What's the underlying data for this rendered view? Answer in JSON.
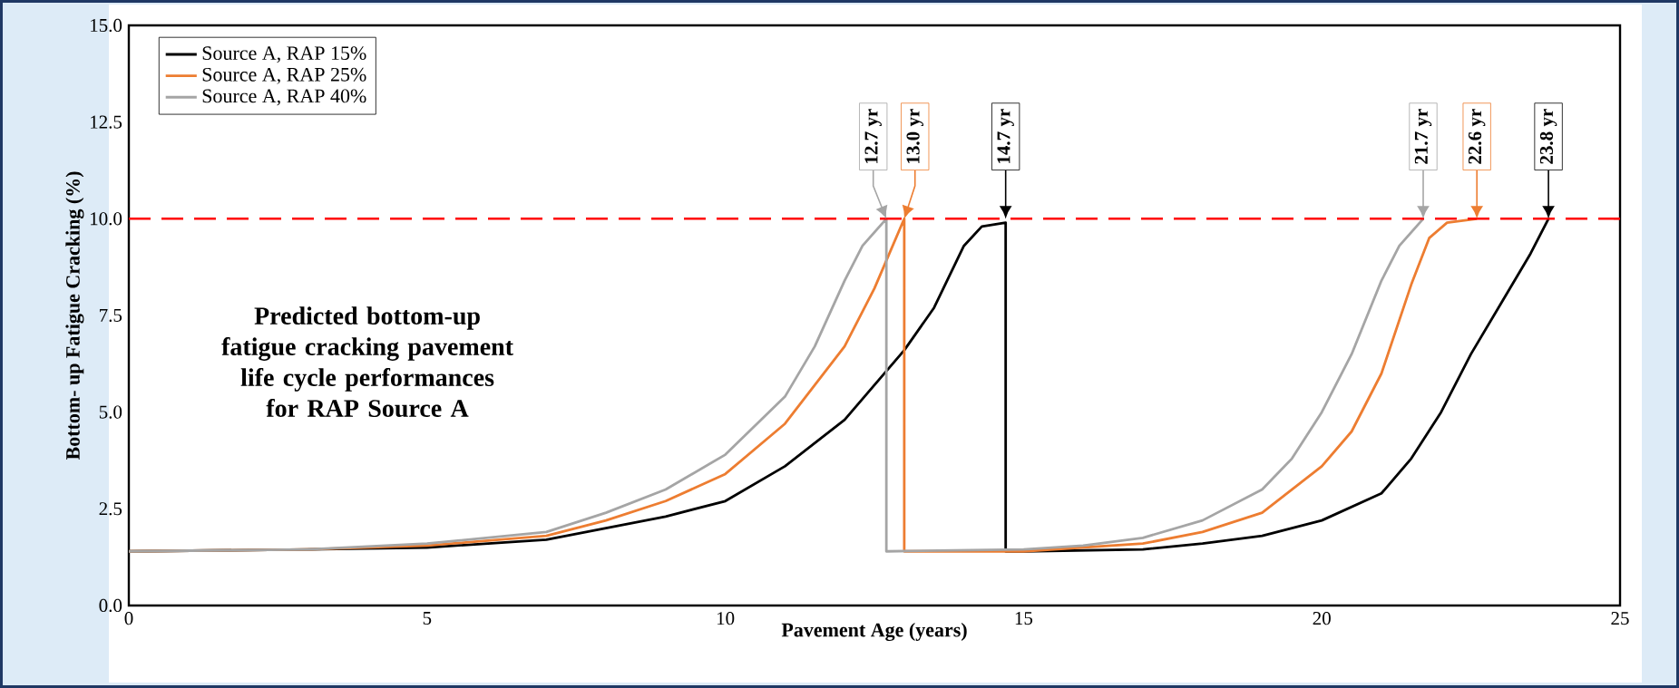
{
  "chart_data": {
    "type": "line",
    "xlabel": "Pavement Age (years)",
    "ylabel": "Bottom- up Fatigue Cracking (%)",
    "xlim": [
      0,
      25
    ],
    "xticks": [
      0,
      5,
      10,
      15,
      20,
      25
    ],
    "ylim": [
      0,
      15
    ],
    "yticks": [
      {
        "value": 0,
        "label": "0.0"
      },
      {
        "value": 2.5,
        "label": "2.5"
      },
      {
        "value": 5,
        "label": "5.0"
      },
      {
        "value": 7.5,
        "label": "7.5"
      },
      {
        "value": 10,
        "label": "10.0"
      },
      {
        "value": 12.5,
        "label": "12.5"
      },
      {
        "value": 15,
        "label": "15.0"
      }
    ],
    "series": [
      {
        "name": "Source A, RAP 15%",
        "color": "#000000",
        "x": [
          0,
          3,
          5,
          7,
          8,
          9,
          10,
          11,
          12,
          13,
          13.5,
          14,
          14.3,
          14.7,
          14.7,
          15,
          17,
          18,
          19,
          20,
          21,
          21.5,
          22,
          22.5,
          23,
          23.5,
          23.8
        ],
        "values": [
          1.4,
          1.45,
          1.5,
          1.7,
          2.0,
          2.3,
          2.7,
          3.6,
          4.8,
          6.6,
          7.7,
          9.3,
          9.8,
          9.9,
          1.4,
          1.4,
          1.45,
          1.6,
          1.8,
          2.2,
          2.9,
          3.8,
          5.0,
          6.5,
          7.8,
          9.1,
          10.0
        ]
      },
      {
        "name": "Source A, RAP 25%",
        "color": "#ed7d31",
        "x": [
          0,
          3,
          5,
          7,
          8,
          9,
          10,
          11,
          12,
          12.5,
          13.0,
          13.0,
          15,
          17,
          18,
          19,
          20,
          20.5,
          21,
          21.5,
          21.8,
          22.1,
          22.6
        ],
        "values": [
          1.4,
          1.45,
          1.55,
          1.8,
          2.2,
          2.7,
          3.4,
          4.7,
          6.7,
          8.2,
          10.0,
          1.4,
          1.4,
          1.6,
          1.9,
          2.4,
          3.6,
          4.5,
          6.0,
          8.3,
          9.5,
          9.9,
          10.0
        ]
      },
      {
        "name": "Source A, RAP 40%",
        "color": "#a5a5a5",
        "x": [
          0,
          3,
          5,
          7,
          8,
          9,
          10,
          11,
          11.5,
          12,
          12.3,
          12.7,
          12.7,
          15,
          16,
          17,
          18,
          19,
          19.5,
          20,
          20.5,
          21,
          21.3,
          21.7
        ],
        "values": [
          1.4,
          1.45,
          1.6,
          1.9,
          2.4,
          3.0,
          3.9,
          5.4,
          6.7,
          8.4,
          9.3,
          10.0,
          1.4,
          1.45,
          1.55,
          1.75,
          2.2,
          3.0,
          3.8,
          5.0,
          6.5,
          8.4,
          9.3,
          10.0
        ]
      }
    ],
    "ref_lines": [
      {
        "axis": "y",
        "value": 10,
        "color": "#ff0000",
        "line_style": "dashed"
      }
    ],
    "annotations": [
      "Predicted bottom-up fatigue cracking pavement life cycle performances for RAP Source A",
      {
        "text": "12.7 yr",
        "x": 12.7,
        "y": 10
      },
      {
        "text": "13.0 yr",
        "x": 13.0,
        "y": 10
      },
      {
        "text": "14.7 yr",
        "x": 14.7,
        "y": 10
      },
      {
        "text": "21.7 yr",
        "x": 21.7,
        "y": 10
      },
      {
        "text": "22.6 yr",
        "x": 22.6,
        "y": 10
      },
      {
        "text": "23.8 yr",
        "x": 23.8,
        "y": 10
      }
    ],
    "legend": "top left",
    "grid": false,
    "marker": "none",
    "line_style": "solid"
  }
}
